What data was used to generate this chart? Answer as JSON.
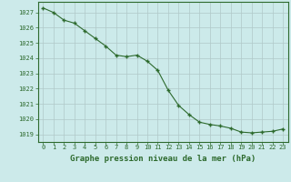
{
  "x": [
    0,
    1,
    2,
    3,
    4,
    5,
    6,
    7,
    8,
    9,
    10,
    11,
    12,
    13,
    14,
    15,
    16,
    17,
    18,
    19,
    20,
    21,
    22,
    23
  ],
  "y": [
    1027.3,
    1027.0,
    1026.5,
    1026.3,
    1025.8,
    1025.3,
    1024.8,
    1024.2,
    1024.1,
    1024.2,
    1023.8,
    1023.2,
    1021.9,
    1020.9,
    1020.3,
    1019.8,
    1019.65,
    1019.55,
    1019.4,
    1019.15,
    1019.1,
    1019.15,
    1019.2,
    1019.35
  ],
  "line_color": "#2d6a2d",
  "marker": "+",
  "bg_color": "#cceaea",
  "grid_color": "#b0c8c8",
  "xlabel": "Graphe pression niveau de la mer (hPa)",
  "xlabel_color": "#2d6a2d",
  "ylabel_ticks": [
    1019,
    1020,
    1021,
    1022,
    1023,
    1024,
    1025,
    1026,
    1027
  ],
  "ylim": [
    1018.5,
    1027.7
  ],
  "xlim": [
    -0.5,
    23.5
  ],
  "xticks": [
    0,
    1,
    2,
    3,
    4,
    5,
    6,
    7,
    8,
    9,
    10,
    11,
    12,
    13,
    14,
    15,
    16,
    17,
    18,
    19,
    20,
    21,
    22,
    23
  ],
  "tick_label_color": "#2d6a2d",
  "tick_label_fontsize": 5.0,
  "xlabel_fontsize": 6.5,
  "xlabel_fontweight": "bold"
}
